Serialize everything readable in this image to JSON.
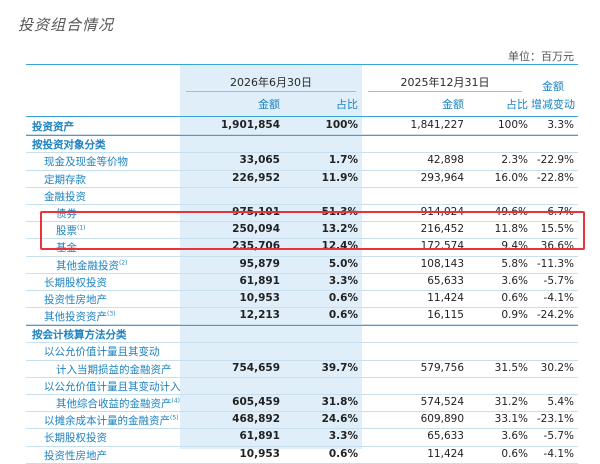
{
  "title": "投资组合情况",
  "unit": "单位：百万元",
  "header": {
    "period_current": "2026年6月30日",
    "period_prior": "2025年12月31日",
    "amount": "金额",
    "share": "占比",
    "change_line1": "金额",
    "change_line2": "增减变动"
  },
  "rows": [
    {
      "type": "bold",
      "label": "投资资产",
      "v1": "1,901,854",
      "v2": "100%",
      "v3": "1,841,227",
      "v4": "100%",
      "v5": "3.3%"
    },
    {
      "type": "sec",
      "label": "按投资对象分类",
      "v1": "",
      "v2": "",
      "v3": "",
      "v4": "",
      "v5": ""
    },
    {
      "type": "sub",
      "indent": 1,
      "label": "现金及现金等价物",
      "v1": "33,065",
      "v2": "1.7%",
      "v3": "42,898",
      "v4": "2.3%",
      "v5": "-22.9%"
    },
    {
      "type": "sub",
      "indent": 1,
      "label": "定期存款",
      "v1": "226,952",
      "v2": "11.9%",
      "v3": "293,964",
      "v4": "16.0%",
      "v5": "-22.8%"
    },
    {
      "type": "sub",
      "indent": 1,
      "label": "金融投资",
      "v1": "",
      "v2": "",
      "v3": "",
      "v4": "",
      "v5": ""
    },
    {
      "type": "sub",
      "indent": 2,
      "label": "债券",
      "v1": "975,101",
      "v2": "51.3%",
      "v3": "914,024",
      "v4": "49.6%",
      "v5": "6.7%"
    },
    {
      "type": "sub",
      "indent": 2,
      "label": "股票",
      "sup": "(1)",
      "v1": "250,094",
      "v2": "13.2%",
      "v3": "216,452",
      "v4": "11.8%",
      "v5": "15.5%"
    },
    {
      "type": "sub",
      "indent": 2,
      "label": "基金",
      "v1": "235,706",
      "v2": "12.4%",
      "v3": "172,574",
      "v4": "9.4%",
      "v5": "36.6%"
    },
    {
      "type": "sub",
      "indent": 2,
      "label": "其他金融投资",
      "sup": "(2)",
      "v1": "95,879",
      "v2": "5.0%",
      "v3": "108,143",
      "v4": "5.8%",
      "v5": "-11.3%"
    },
    {
      "type": "sub",
      "indent": 1,
      "label": "长期股权投资",
      "v1": "61,891",
      "v2": "3.3%",
      "v3": "65,633",
      "v4": "3.6%",
      "v5": "-5.7%"
    },
    {
      "type": "sub",
      "indent": 1,
      "label": "投资性房地产",
      "v1": "10,953",
      "v2": "0.6%",
      "v3": "11,424",
      "v4": "0.6%",
      "v5": "-4.1%"
    },
    {
      "type": "sub",
      "indent": 1,
      "label": "其他投资资产",
      "sup": "(3)",
      "v1": "12,213",
      "v2": "0.6%",
      "v3": "16,115",
      "v4": "0.9%",
      "v5": "-24.2%"
    },
    {
      "type": "sec",
      "label": "按会计核算方法分类",
      "v1": "",
      "v2": "",
      "v3": "",
      "v4": "",
      "v5": ""
    },
    {
      "type": "sub",
      "indent": 1,
      "label": "以公允价值计量且其变动",
      "v1": "",
      "v2": "",
      "v3": "",
      "v4": "",
      "v5": ""
    },
    {
      "type": "sub",
      "indent": 2,
      "label": "计入当期损益的金融资产",
      "v1": "754,659",
      "v2": "39.7%",
      "v3": "579,756",
      "v4": "31.5%",
      "v5": "30.2%"
    },
    {
      "type": "sub",
      "indent": 1,
      "label": "以公允价值计量且其变动计入",
      "v1": "",
      "v2": "",
      "v3": "",
      "v4": "",
      "v5": ""
    },
    {
      "type": "sub",
      "indent": 2,
      "label": "其他综合收益的金融资产",
      "sup": "(4)",
      "v1": "605,459",
      "v2": "31.8%",
      "v3": "574,524",
      "v4": "31.2%",
      "v5": "5.4%"
    },
    {
      "type": "sub",
      "indent": 1,
      "label": "以摊余成本计量的金融资产",
      "sup": "(5)",
      "v1": "468,892",
      "v2": "24.6%",
      "v3": "609,890",
      "v4": "33.1%",
      "v5": "-23.1%"
    },
    {
      "type": "sub",
      "indent": 1,
      "label": "长期股权投资",
      "v1": "61,891",
      "v2": "3.3%",
      "v3": "65,633",
      "v4": "3.6%",
      "v5": "-5.7%"
    },
    {
      "type": "sub",
      "indent": 1,
      "label": "投资性房地产",
      "v1": "10,953",
      "v2": "0.6%",
      "v3": "11,424",
      "v4": "0.6%",
      "v5": "-4.1%"
    }
  ]
}
